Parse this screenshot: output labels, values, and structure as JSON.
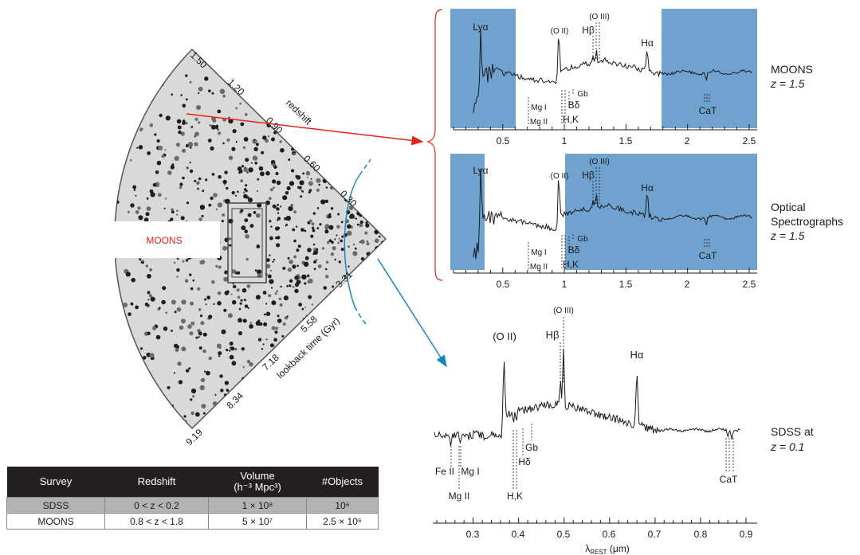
{
  "colors": {
    "band": "#6fa2cf",
    "arrow_red": "#e2231a",
    "arrow_blue": "#1a86c0",
    "moons_label": "#e2231a",
    "table_header": "#231f20",
    "table_sdss_row": "#b3b3b3",
    "spectrum": "#1a1a1a"
  },
  "cone": {
    "moons_label": "MOONS",
    "redshift_axis_label": "redshift",
    "lookback_axis_label": "lookback time (Gyr)",
    "redshift_ticks": [
      "1.50",
      "1.20",
      "0.90",
      "0.60",
      "0.30"
    ],
    "lookback_ticks": [
      "3.31",
      "5.58",
      "7.18",
      "8.34",
      "9.19"
    ]
  },
  "panels": {
    "moons": {
      "title": "MOONS",
      "redshift_text": "z = 1.5"
    },
    "optical": {
      "title_line1": "Optical",
      "title_line2": "Spectrographs",
      "redshift_text": "z = 1.5"
    },
    "sdss": {
      "title": "SDSS at",
      "redshift_text": "z = 0.1"
    }
  },
  "chart_data": [
    {
      "type": "line",
      "title": "MOONS z = 1.5",
      "xlabel": "",
      "xlim": [
        0.2,
        2.5
      ],
      "x_ticks": [
        "0.5",
        "1",
        "1.5",
        "2",
        "2.5"
      ],
      "shaded_coverage_um": [
        [
          0.2,
          0.6
        ],
        [
          1.77,
          2.5
        ]
      ],
      "line_labels": [
        "Lyα",
        "(O II)",
        "(O III)",
        "Hβ",
        "Hα",
        "Mg I",
        "Mg II",
        "Gb",
        "Bδ",
        "H,K",
        "CaT"
      ]
    },
    {
      "type": "line",
      "title": "Optical Spectrographs z = 1.5",
      "xlabel": "",
      "xlim": [
        0.2,
        2.5
      ],
      "x_ticks": [
        "0.5",
        "1",
        "1.5",
        "2",
        "2.5"
      ],
      "shaded_coverage_um": [
        [
          0.2,
          0.34
        ],
        [
          1.0,
          2.5
        ]
      ],
      "line_labels": [
        "Lyα",
        "(O II)",
        "(O III)",
        "Hβ",
        "Hα",
        "Mg I",
        "Mg II",
        "Gb",
        "Bδ",
        "H,K",
        "CaT"
      ]
    },
    {
      "type": "line",
      "title": "SDSS at z = 0.1",
      "xlabel": "λREST (μm)",
      "xlim": [
        0.22,
        0.92
      ],
      "x_ticks": [
        "0.3",
        "0.4",
        "0.5",
        "0.6",
        "0.7",
        "0.8",
        "0.9"
      ],
      "line_labels": [
        "(O II)",
        "(O III)",
        "Hβ",
        "Hα",
        "Gb",
        "Hδ",
        "H,K",
        "Fe II",
        "Mg I",
        "Mg II",
        "CaT"
      ]
    }
  ],
  "labels": {
    "lya": "Lyα",
    "oii": "(O II)",
    "oiii": "(O III)",
    "hb": "Hβ",
    "ha": "Hα",
    "mgi": "Mg I",
    "mgii": "Mg II",
    "gb": "Gb",
    "bd": "Bδ",
    "hd": "Hδ",
    "hk": "H,K",
    "cat": "CaT",
    "feii": "Fe II",
    "xlabel_main": "λ",
    "xlabel_sub": "REST",
    "xlabel_unit": " (μm)"
  },
  "table": {
    "headers": [
      "Survey",
      "Redshift",
      "Volume (h⁻³ Mpc³)",
      "#Objects"
    ],
    "header_volume_line1": "Volume",
    "header_volume_line2": "(h⁻³ Mpc³)",
    "rows": [
      {
        "survey": "SDSS",
        "redshift": "0 < z < 0.2",
        "volume": "1 × 10⁸",
        "objects": "10⁶"
      },
      {
        "survey": "MOONS",
        "redshift": "0.8 < z < 1.8",
        "volume": "5 × 10⁷",
        "objects": "2.5 × 10⁶"
      }
    ]
  }
}
